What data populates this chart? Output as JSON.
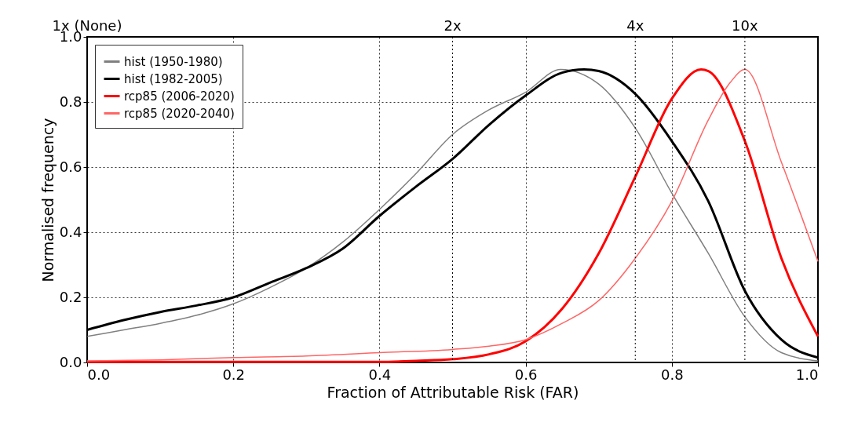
{
  "chart_data": {
    "type": "line",
    "xlabel": "Fraction of Attributable Risk (FAR)",
    "ylabel": "Normalised frequency",
    "series": [
      {
        "name": "hist (1950-1980)",
        "color": "#808080",
        "x": [
          0,
          0.05,
          0.1,
          0.15,
          0.2,
          0.25,
          0.3,
          0.35,
          0.4,
          0.45,
          0.5,
          0.55,
          0.6,
          0.648,
          0.7,
          0.75,
          0.8,
          0.85,
          0.9,
          0.95,
          1.0
        ],
        "values": [
          0.08,
          0.1,
          0.12,
          0.145,
          0.18,
          0.23,
          0.29,
          0.37,
          0.47,
          0.58,
          0.7,
          0.776,
          0.83,
          0.9,
          0.855,
          0.72,
          0.52,
          0.335,
          0.14,
          0.03,
          0.005
        ]
      },
      {
        "name": "hist (1982-2005)",
        "color": "#000000",
        "x": [
          0,
          0.05,
          0.1,
          0.15,
          0.2,
          0.25,
          0.3,
          0.35,
          0.4,
          0.45,
          0.5,
          0.55,
          0.6,
          0.65,
          0.68,
          0.7,
          0.75,
          0.8,
          0.85,
          0.9,
          0.95,
          1.0
        ],
        "values": [
          0.1,
          0.13,
          0.155,
          0.175,
          0.2,
          0.245,
          0.29,
          0.35,
          0.45,
          0.54,
          0.625,
          0.73,
          0.82,
          0.89,
          0.9,
          0.895,
          0.825,
          0.68,
          0.495,
          0.22,
          0.07,
          0.015
        ]
      },
      {
        "name": "rcp85 (2006-2020)",
        "color": "#ff0000",
        "x": [
          0,
          0.1,
          0.2,
          0.3,
          0.4,
          0.45,
          0.5,
          0.55,
          0.6,
          0.65,
          0.7,
          0.75,
          0.8,
          0.84,
          0.85,
          0.9,
          0.95,
          1.0
        ],
        "values": [
          0.002,
          0.002,
          0.002,
          0.002,
          0.002,
          0.005,
          0.01,
          0.025,
          0.065,
          0.165,
          0.335,
          0.57,
          0.81,
          0.9,
          0.895,
          0.68,
          0.32,
          0.08
        ]
      },
      {
        "name": "rcp85 (2020-2040)",
        "color": "#ff6666",
        "x": [
          0,
          0.1,
          0.2,
          0.3,
          0.4,
          0.5,
          0.55,
          0.6,
          0.65,
          0.7,
          0.75,
          0.8,
          0.85,
          0.88,
          0.9,
          0.95,
          1.0
        ],
        "values": [
          0.005,
          0.008,
          0.015,
          0.02,
          0.03,
          0.04,
          0.05,
          0.07,
          0.12,
          0.19,
          0.32,
          0.495,
          0.745,
          0.86,
          0.9,
          0.615,
          0.31
        ]
      }
    ],
    "xlim": [
      0.0,
      1.0
    ],
    "xticks": [
      {
        "value": 0,
        "label": "0.0"
      },
      0.2,
      0.4,
      0.6,
      0.8,
      {
        "value": 1,
        "label": "1.0"
      }
    ],
    "ylim": [
      0.0,
      1.0
    ],
    "yticks": [
      {
        "value": 0,
        "label": "0.0"
      },
      0.2,
      0.4,
      0.6,
      0.8,
      {
        "value": 1,
        "label": "1.0"
      }
    ],
    "ref_lines": [
      {
        "axis": "x",
        "value": 0,
        "label": "1x (None)",
        "color": "#000000",
        "line_style": "dotted"
      },
      {
        "axis": "x",
        "value": 0.5,
        "label": "2x",
        "color": "#000000",
        "line_style": "dotted"
      },
      {
        "axis": "x",
        "value": 0.75,
        "label": "4x",
        "color": "#000000",
        "line_style": "dotted"
      },
      {
        "axis": "x",
        "value": 0.9,
        "label": "10x",
        "color": "#000000",
        "line_style": "dotted"
      }
    ],
    "grid": true,
    "legend": "top left",
    "line_style": "solid"
  }
}
